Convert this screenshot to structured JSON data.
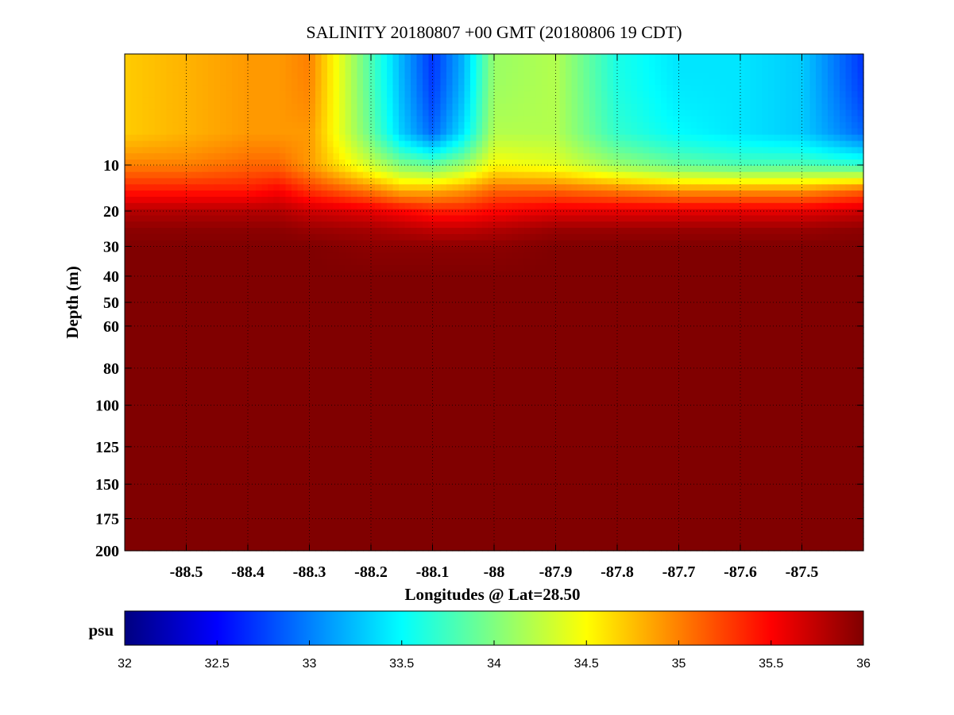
{
  "chart_data": {
    "type": "heatmap",
    "title": "SALINITY 20180807 +00 GMT (20180806 19 CDT)",
    "xlabel": "Longitudes @ Lat=28.50",
    "ylabel": "Depth (m)",
    "xlim": [
      -88.6,
      -87.4
    ],
    "ylim": [
      0,
      200
    ],
    "y_scale": "sqrt",
    "y_reversed": true,
    "grid": true,
    "x_ticks": [
      -88.5,
      -88.4,
      -88.3,
      -88.2,
      -88.1,
      -88,
      -87.9,
      -87.8,
      -87.7,
      -87.6,
      -87.5
    ],
    "x_tick_labels": [
      "-88.5",
      "-88.4",
      "-88.3",
      "-88.2",
      "-88.1",
      "-88",
      "-87.9",
      "-87.8",
      "-87.7",
      "-87.6",
      "-87.5"
    ],
    "y_ticks": [
      10,
      20,
      30,
      40,
      50,
      60,
      80,
      100,
      125,
      150,
      175,
      200
    ],
    "y_tick_labels": [
      "10",
      "20",
      "30",
      "40",
      "50",
      "60",
      "80",
      "100",
      "125",
      "150",
      "175",
      "200"
    ],
    "x": [
      -88.6,
      -88.5,
      -88.4,
      -88.35,
      -88.3,
      -88.2,
      -88.15,
      -88.1,
      -88.05,
      -88.0,
      -87.9,
      -87.8,
      -87.7,
      -87.6,
      -87.5,
      -87.4
    ],
    "y": [
      0,
      5,
      10,
      15,
      20,
      25,
      30,
      40,
      60,
      200
    ],
    "z": [
      [
        34.7,
        34.8,
        34.9,
        34.9,
        35.0,
        33.8,
        33.2,
        32.7,
        33.2,
        34.1,
        34.2,
        33.6,
        33.4,
        33.4,
        33.3,
        32.7
      ],
      [
        34.7,
        34.8,
        34.9,
        34.9,
        34.9,
        33.9,
        33.3,
        32.9,
        33.4,
        34.2,
        34.2,
        33.7,
        33.5,
        33.4,
        33.3,
        32.9
      ],
      [
        35.0,
        35.0,
        35.1,
        35.1,
        34.9,
        34.3,
        34.0,
        33.9,
        34.1,
        34.5,
        34.4,
        34.1,
        33.9,
        33.8,
        33.8,
        33.7
      ],
      [
        35.4,
        35.4,
        35.4,
        35.5,
        35.3,
        35.0,
        34.8,
        34.8,
        34.9,
        35.1,
        35.1,
        35.0,
        34.9,
        34.9,
        34.9,
        35.1
      ],
      [
        35.8,
        35.8,
        35.8,
        35.8,
        35.7,
        35.6,
        35.5,
        35.4,
        35.4,
        35.5,
        35.6,
        35.6,
        35.6,
        35.6,
        35.6,
        35.7
      ],
      [
        35.95,
        35.95,
        35.95,
        35.95,
        35.9,
        35.85,
        35.8,
        35.75,
        35.75,
        35.8,
        35.9,
        35.9,
        35.9,
        35.9,
        35.9,
        35.95
      ],
      [
        36.0,
        36.0,
        36.0,
        36.0,
        36.0,
        35.95,
        35.95,
        35.95,
        35.95,
        35.95,
        36.0,
        36.0,
        36.0,
        36.0,
        36.0,
        36.0
      ],
      [
        36.0,
        36.0,
        36.0,
        36.0,
        36.0,
        36.0,
        36.0,
        36.0,
        36.0,
        36.0,
        36.0,
        36.0,
        36.0,
        36.0,
        36.0,
        36.0
      ],
      [
        36.0,
        36.0,
        36.0,
        36.0,
        36.0,
        36.0,
        36.0,
        36.0,
        36.0,
        36.0,
        36.0,
        36.0,
        36.0,
        36.0,
        36.0,
        36.0
      ],
      [
        36.0,
        36.0,
        36.0,
        36.0,
        36.0,
        36.0,
        36.0,
        36.0,
        36.0,
        36.0,
        36.0,
        36.0,
        36.0,
        36.0,
        36.0,
        36.0
      ]
    ],
    "colormap": "jet",
    "colorbar": {
      "label": "psu",
      "range": [
        32,
        36
      ],
      "ticks": [
        32,
        32.5,
        33,
        33.5,
        34,
        34.5,
        35,
        35.5,
        36
      ],
      "tick_labels": [
        "32",
        "32.5",
        "33",
        "33.5",
        "34",
        "34.5",
        "35",
        "35.5",
        "36"
      ],
      "orientation": "horizontal",
      "placement": "bottom"
    }
  }
}
